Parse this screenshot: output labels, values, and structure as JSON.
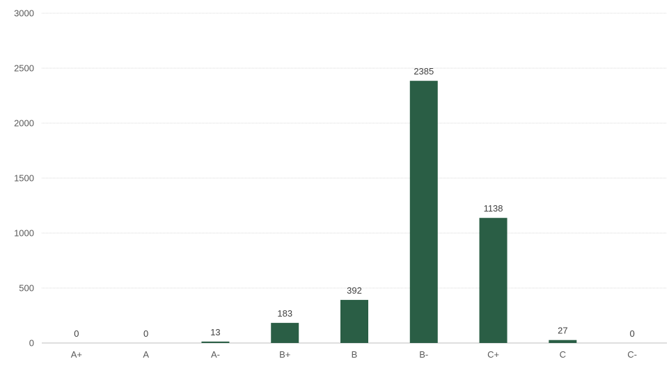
{
  "chart_data": {
    "type": "bar",
    "categories": [
      "A+",
      "A",
      "A-",
      "B+",
      "B",
      "B-",
      "C+",
      "C",
      "C-"
    ],
    "values": [
      0,
      0,
      13,
      183,
      392,
      2385,
      1138,
      27,
      0
    ],
    "data_labels": [
      "0",
      "0",
      "13",
      "183",
      "392",
      "2385",
      "1138",
      "27",
      "0"
    ],
    "yticks": [
      0,
      500,
      1000,
      1500,
      2000,
      2500,
      3000
    ],
    "ylim": [
      0,
      3000
    ],
    "title": "",
    "xlabel": "",
    "ylabel": "",
    "grid": true,
    "legend": "none",
    "bar_color": "#2a5e45"
  }
}
